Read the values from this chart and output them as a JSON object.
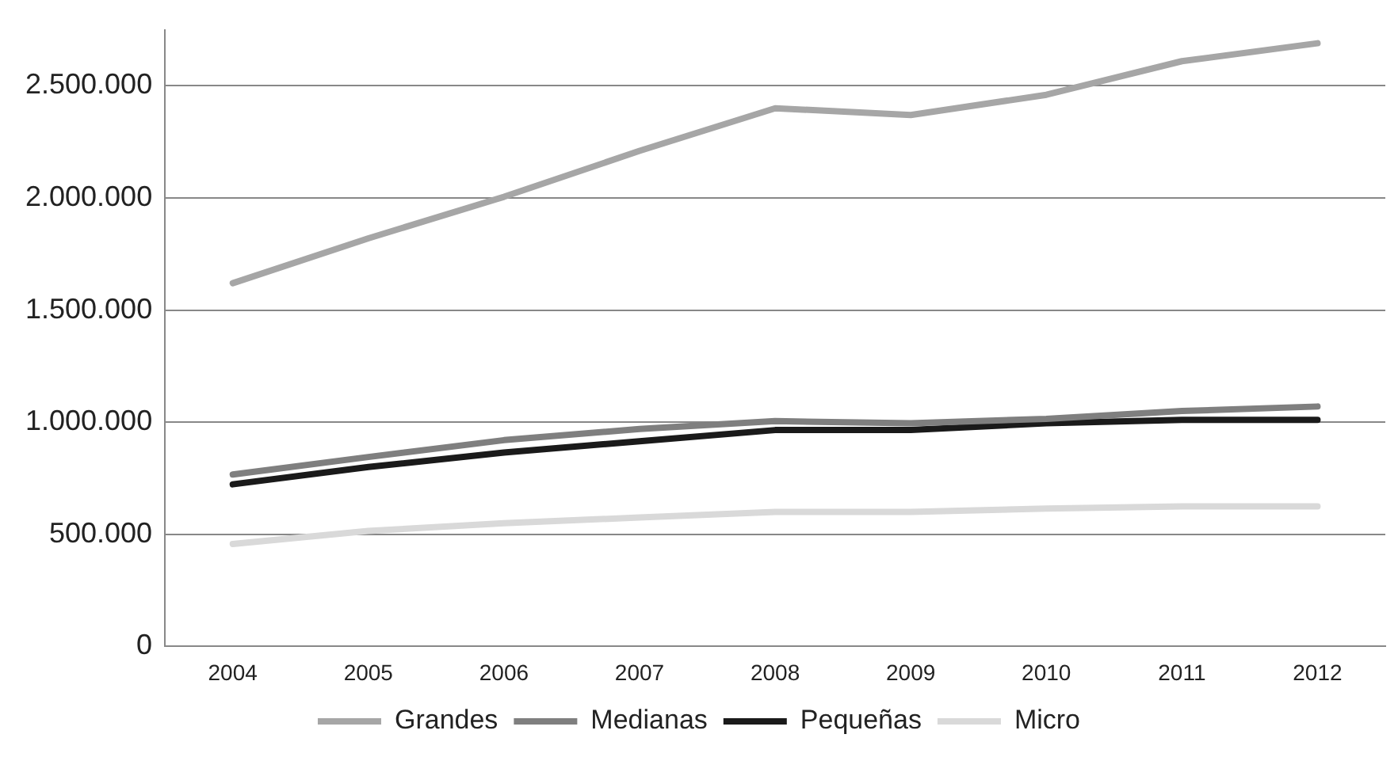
{
  "chart_data": {
    "type": "line",
    "categories": [
      "2004",
      "2005",
      "2006",
      "2007",
      "2008",
      "2009",
      "2010",
      "2011",
      "2012"
    ],
    "series": [
      {
        "name": "Grandes",
        "color": "#a6a6a6",
        "values": [
          1620000,
          1820000,
          2005000,
          2210000,
          2400000,
          2370000,
          2460000,
          2610000,
          2690000
        ]
      },
      {
        "name": "Medianas",
        "color": "#7f7f7f",
        "values": [
          767000,
          845000,
          920000,
          970000,
          1005000,
          995000,
          1015000,
          1050000,
          1070000
        ]
      },
      {
        "name": "Pequeñas",
        "color": "#1a1a1a",
        "values": [
          723000,
          800000,
          865000,
          915000,
          965000,
          965000,
          995000,
          1010000,
          1010000
        ]
      },
      {
        "name": "Micro",
        "color": "#d9d9d9",
        "values": [
          457000,
          515000,
          550000,
          575000,
          600000,
          600000,
          615000,
          625000,
          625000
        ]
      }
    ],
    "ylim": [
      0,
      2750000
    ],
    "yticks": [
      {
        "value": 0,
        "label": "0"
      },
      {
        "value": 500000,
        "label": "500.000"
      },
      {
        "value": 1000000,
        "label": "1.000.000"
      },
      {
        "value": 1500000,
        "label": "1.500.000"
      },
      {
        "value": 2000000,
        "label": "2.000.000"
      },
      {
        "value": 2500000,
        "label": "2.500.000"
      }
    ],
    "grid": "y",
    "legend": "bottom",
    "marker": "none",
    "line_style": "solid"
  }
}
